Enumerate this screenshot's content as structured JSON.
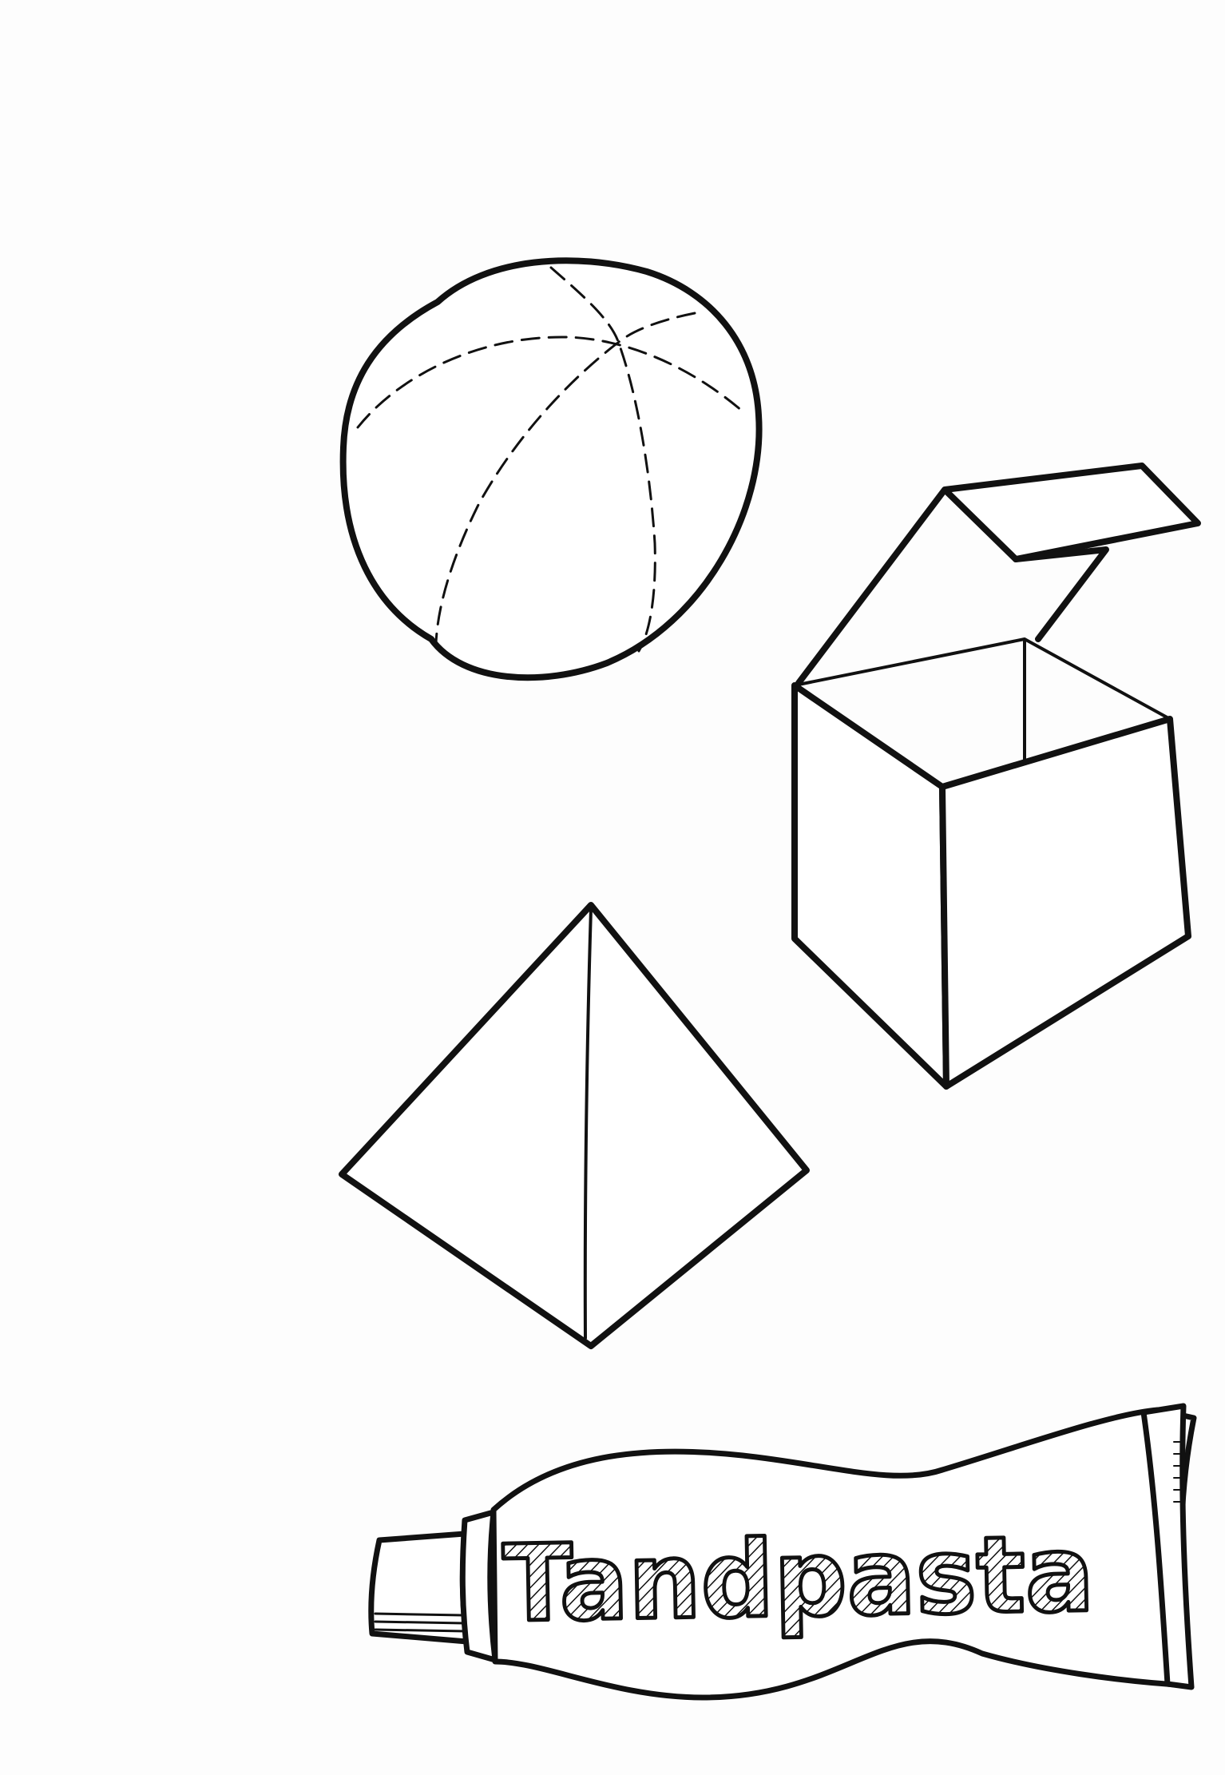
{
  "drawing": {
    "subjects": [
      "sphere",
      "open-box",
      "pyramid",
      "toothpaste-tube"
    ],
    "ink_color": "#111111",
    "paper_color": "#fdfdfd"
  },
  "toothpaste_tube": {
    "label": "Tandpasta"
  }
}
